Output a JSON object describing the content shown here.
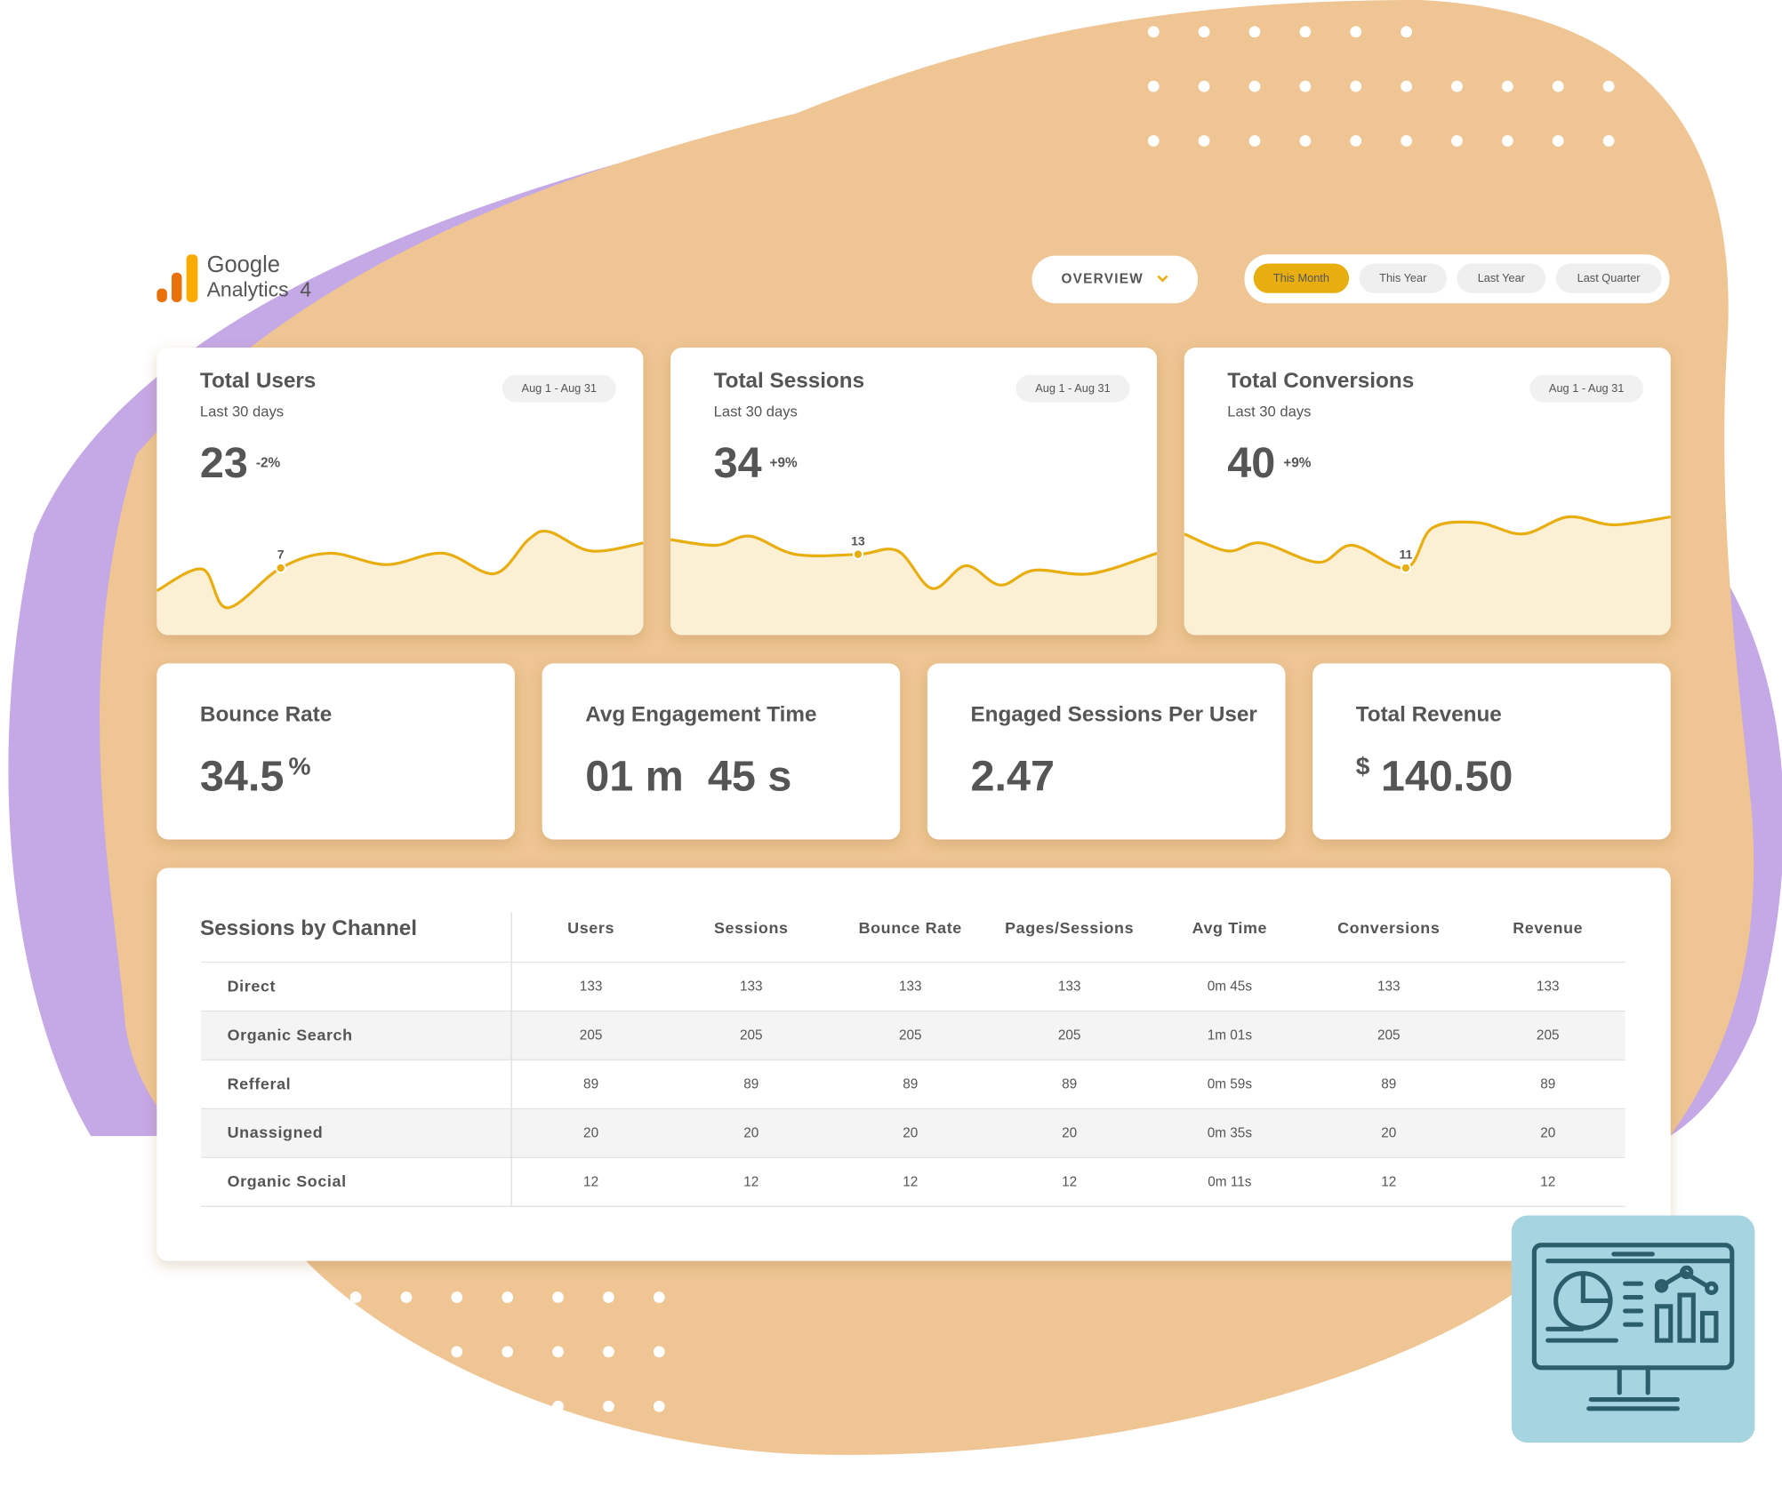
{
  "header": {
    "logo_line1": "Google",
    "logo_line2": "Analytics",
    "logo_suffix": "4",
    "view_button": "OVERVIEW",
    "periods": [
      "This Month",
      "This Year",
      "Last Year",
      "Last Quarter"
    ],
    "active_period": 0,
    "accent_color": "#e8ae10"
  },
  "kpi_cards": [
    {
      "title": "Total Users",
      "subtitle": "Last 30 days",
      "date_range": "Aug 1 - Aug 31",
      "value": 23,
      "change": "-2%",
      "change_color": "#ef5a64",
      "highlight_point": 7
    },
    {
      "title": "Total Sessions",
      "subtitle": "Last 30 days",
      "date_range": "Aug 1 - Aug 31",
      "value": 34,
      "change": "+9%",
      "change_color": "#17705f",
      "highlight_point": 13
    },
    {
      "title": "Total Conversions",
      "subtitle": "Last 30 days",
      "date_range": "Aug 1 - Aug 31",
      "value": 40,
      "change": "+9%",
      "change_color": "#17705f",
      "highlight_point": 11
    }
  ],
  "metrics": [
    {
      "title": "Bounce Rate",
      "value": "34.5",
      "suffix": "%"
    },
    {
      "title": "Avg Engagement Time",
      "value": "01 m  45 s"
    },
    {
      "title": "Engaged Sessions Per User",
      "value": "2.47"
    },
    {
      "title": "Total Revenue",
      "prefix": "$",
      "value": "140.50"
    }
  ],
  "table": {
    "title": "Sessions by Channel",
    "columns": [
      "Users",
      "Sessions",
      "Bounce Rate",
      "Pages/Sessions",
      "Avg Time",
      "Conversions",
      "Revenue"
    ],
    "rows": [
      [
        "Direct",
        133,
        133,
        133,
        133,
        "0m 45s",
        133,
        133
      ],
      [
        "Organic Search",
        205,
        205,
        205,
        205,
        "1m 01s",
        205,
        205
      ],
      [
        "Refferal",
        89,
        89,
        89,
        89,
        "0m 59s",
        89,
        89
      ],
      [
        "Unassigned",
        20,
        20,
        20,
        20,
        "0m 35s",
        20,
        20
      ],
      [
        "Organic Social",
        12,
        12,
        12,
        12,
        "0m 11s",
        12,
        12
      ]
    ]
  }
}
